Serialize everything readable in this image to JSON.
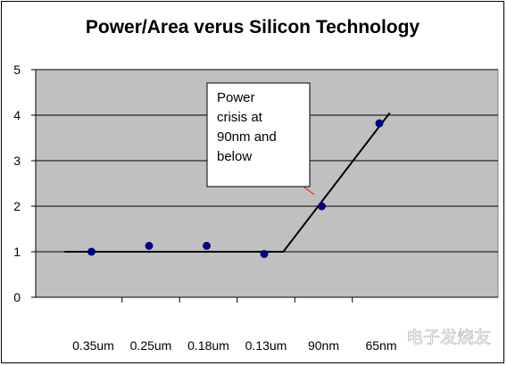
{
  "chart_data": {
    "type": "scatter",
    "title": "Power/Area verus Silicon Technology",
    "xlabel": "",
    "ylabel": "",
    "categories": [
      "0.35um",
      "0.25um",
      "0.18um",
      "0.13um",
      "90nm",
      "65nm"
    ],
    "points": [
      {
        "x": "0.35um",
        "y": 1.0
      },
      {
        "x": "0.25um",
        "y": 1.13
      },
      {
        "x": "0.18um",
        "y": 1.13
      },
      {
        "x": "0.13um",
        "y": 0.95
      },
      {
        "x": "90nm",
        "y": 2.0
      },
      {
        "x": "65nm",
        "y": 3.82
      }
    ],
    "trend_line": [
      {
        "x": "0.35um",
        "y": 1.0
      },
      {
        "x": "0.13um",
        "y": 1.0
      },
      {
        "x": "65nm",
        "y": 4.05
      }
    ],
    "ylim": [
      0,
      5
    ],
    "yticks": [
      0,
      1,
      2,
      3,
      4,
      5
    ],
    "grid": true,
    "annotation": "Power crisis at 90nm and below",
    "colors": {
      "plot_area": "#c0c0c0",
      "marker": "#00007f",
      "trend_line": "#000000",
      "annotation_pointer": "#ff0000"
    }
  },
  "watermark": "电子发烧友"
}
